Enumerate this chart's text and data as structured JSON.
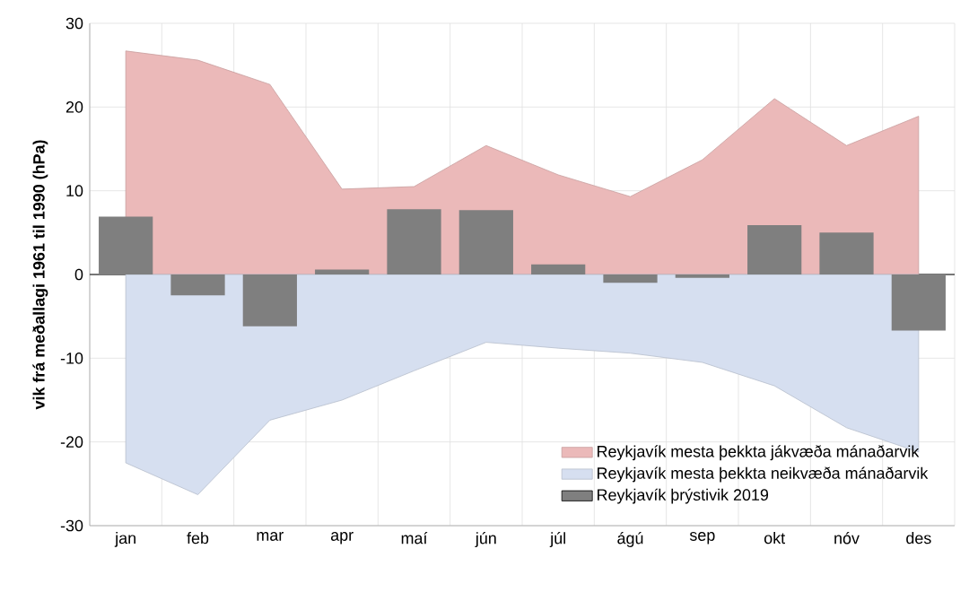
{
  "chart_data": {
    "type": "bar",
    "ylabel": "vik frá meðallagi 1961 til 1990 (hPa)",
    "categories": [
      "jan",
      "feb",
      "mar",
      "apr",
      "maí",
      "jún",
      "júl",
      "ágú",
      "sep",
      "okt",
      "nóv",
      "des"
    ],
    "series": [
      {
        "name": "Reykjavík mesta þekkta jákvæða mánaðarvik",
        "type": "area",
        "color": "#ebb9b9",
        "values": [
          26.7,
          25.6,
          22.7,
          10.2,
          10.5,
          15.4,
          11.9,
          9.3,
          13.7,
          21.0,
          15.4,
          18.9
        ]
      },
      {
        "name": "Reykjavík mesta þekkta neikvæða mánaðarvik",
        "type": "area",
        "color": "#d6dff0",
        "values": [
          -22.5,
          -26.3,
          -17.4,
          -15.0,
          -11.5,
          -8.1,
          -8.8,
          -9.4,
          -10.5,
          -13.3,
          -18.3,
          -21.2
        ]
      },
      {
        "name": "Reykjavík þrýstivik 2019",
        "color": "#7f7f7f",
        "values": [
          6.9,
          -2.5,
          -6.2,
          0.6,
          7.8,
          7.7,
          1.2,
          -1.0,
          -0.4,
          5.9,
          5.0,
          -6.7
        ]
      }
    ],
    "ylim": [
      -30,
      30
    ],
    "yticks": [
      -30,
      -20,
      -10,
      0,
      10,
      20,
      30
    ],
    "grid": true,
    "legend": "bottom right"
  }
}
